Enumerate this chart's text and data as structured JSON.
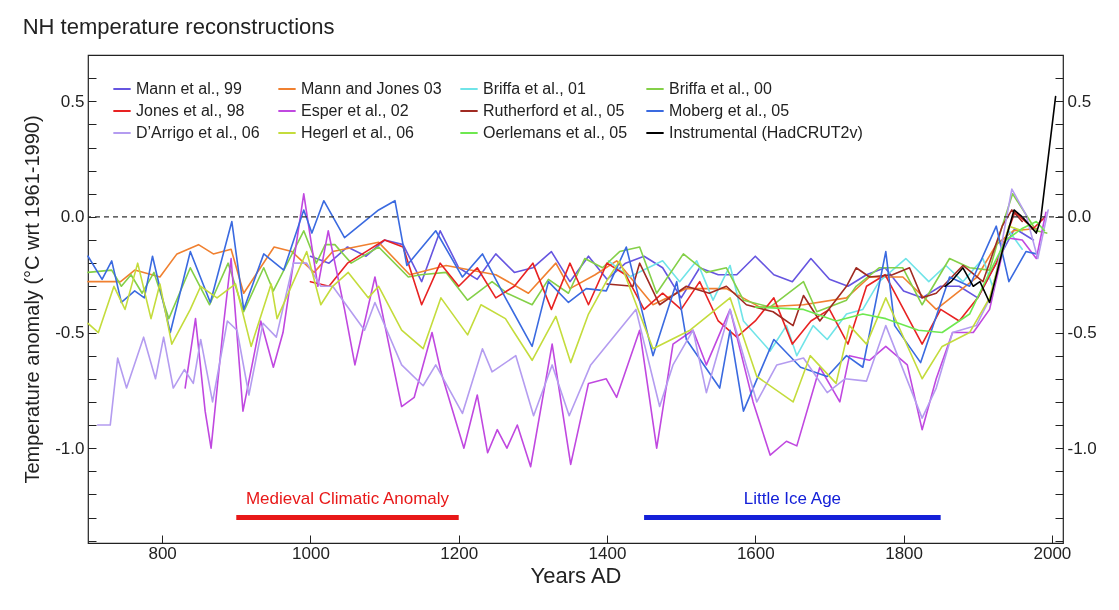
{
  "chart_data": {
    "type": "line",
    "title": "NH temperature reconstructions",
    "xlabel": "Years AD",
    "ylabel": "Temperature anomaly  (°C wrt 1961-1990)",
    "xlim": [
      700,
      2015
    ],
    "xticks": [
      800,
      1000,
      1200,
      1400,
      1600,
      1800,
      2000
    ],
    "ylim": [
      -1.41,
      0.7
    ],
    "yticks": [
      {
        "value": -1.4,
        "label": null
      },
      {
        "value": -1.3,
        "label": null
      },
      {
        "value": -1.2,
        "label": null
      },
      {
        "value": -1.1,
        "label": null
      },
      {
        "value": -1.0,
        "label": "-1.0"
      },
      {
        "value": -0.9,
        "label": null
      },
      {
        "value": -0.8,
        "label": null
      },
      {
        "value": -0.7,
        "label": null
      },
      {
        "value": -0.6,
        "label": null
      },
      {
        "value": -0.5,
        "label": "-0.5"
      },
      {
        "value": -0.4,
        "label": null
      },
      {
        "value": -0.3,
        "label": null
      },
      {
        "value": -0.2,
        "label": null
      },
      {
        "value": -0.1,
        "label": null
      },
      {
        "value": 0,
        "label": "0.0"
      },
      {
        "value": 0.1,
        "label": null
      },
      {
        "value": 0.2,
        "label": null
      },
      {
        "value": 0.3,
        "label": null
      },
      {
        "value": 0.4,
        "label": null
      },
      {
        "value": 0.5,
        "label": "0.5"
      },
      {
        "value": 0.6,
        "label": null
      }
    ],
    "y2lim": [
      -1.41,
      0.7
    ],
    "y2ticks": [
      {
        "value": -1.4,
        "label": null
      },
      {
        "value": -1.3,
        "label": null
      },
      {
        "value": -1.2,
        "label": null
      },
      {
        "value": -1.1,
        "label": null
      },
      {
        "value": -1.0,
        "label": "-1.0"
      },
      {
        "value": -0.9,
        "label": null
      },
      {
        "value": -0.8,
        "label": null
      },
      {
        "value": -0.7,
        "label": null
      },
      {
        "value": -0.6,
        "label": null
      },
      {
        "value": -0.5,
        "label": "-0.5"
      },
      {
        "value": -0.4,
        "label": null
      },
      {
        "value": -0.3,
        "label": null
      },
      {
        "value": -0.2,
        "label": null
      },
      {
        "value": -0.1,
        "label": null
      },
      {
        "value": 0,
        "label": "0.0"
      },
      {
        "value": 0.1,
        "label": null
      },
      {
        "value": 0.2,
        "label": null
      },
      {
        "value": 0.3,
        "label": null
      },
      {
        "value": 0.4,
        "label": null
      },
      {
        "value": 0.5,
        "label": "0.5"
      },
      {
        "value": 0.6,
        "label": null
      }
    ],
    "legend": "top left",
    "grid": false,
    "ref_lines": [
      {
        "axis": "y",
        "value": 0,
        "color": "#333333",
        "line_style": "dashed"
      }
    ],
    "annotations": [
      {
        "text": "Medieval Climatic Anomaly",
        "x": 1050,
        "y": -1.3
      },
      {
        "text": "Little Ice Age",
        "x": 1650,
        "y": -1.3
      }
    ],
    "series": [
      {
        "name": "Mann et al., 99",
        "color": "#6655e0",
        "x": [
          1000,
          1025,
          1050,
          1075,
          1100,
          1125,
          1150,
          1175,
          1200,
          1225,
          1250,
          1275,
          1300,
          1325,
          1350,
          1375,
          1400,
          1425,
          1450,
          1475,
          1500,
          1525,
          1550,
          1575,
          1600,
          1625,
          1650,
          1675,
          1700,
          1725,
          1750,
          1775,
          1800,
          1825,
          1850,
          1875,
          1900,
          1925,
          1950,
          1975
        ],
        "values": [
          -0.17,
          -0.2,
          -0.13,
          -0.17,
          -0.1,
          -0.12,
          -0.28,
          -0.06,
          -0.22,
          -0.27,
          -0.16,
          -0.24,
          -0.22,
          -0.15,
          -0.28,
          -0.17,
          -0.27,
          -0.2,
          -0.17,
          -0.22,
          -0.35,
          -0.22,
          -0.25,
          -0.25,
          -0.17,
          -0.25,
          -0.28,
          -0.18,
          -0.27,
          -0.3,
          -0.25,
          -0.22,
          -0.32,
          -0.35,
          -0.3,
          -0.3,
          -0.35,
          -0.2,
          -0.05,
          -0.1
        ]
      },
      {
        "name": "Mann and Jones 03",
        "color": "#f08030",
        "x": [
          700,
          744,
          763,
          797,
          820,
          849,
          869,
          893,
          910,
          951,
          975,
          1005,
          1030,
          1092,
          1134,
          1183,
          1250,
          1294,
          1331,
          1350,
          1384,
          1413,
          1462,
          1507,
          1561,
          1606,
          1665,
          1723,
          1754,
          1799,
          1844,
          1899,
          1925,
          1948,
          1980
        ],
        "values": [
          -0.28,
          -0.28,
          -0.23,
          -0.26,
          -0.16,
          -0.12,
          -0.16,
          -0.14,
          -0.33,
          -0.13,
          -0.15,
          -0.24,
          -0.15,
          -0.11,
          -0.25,
          -0.21,
          -0.25,
          -0.33,
          -0.2,
          -0.31,
          -0.25,
          -0.19,
          -0.38,
          -0.31,
          -0.31,
          -0.39,
          -0.38,
          -0.35,
          -0.26,
          -0.26,
          -0.4,
          -0.26,
          -0.12,
          -0.06,
          -0.05
        ]
      },
      {
        "name": "Briffa et al., 01",
        "color": "#70e4e8",
        "x": [
          1402,
          1430,
          1475,
          1498,
          1521,
          1543,
          1566,
          1584,
          1620,
          1642,
          1656,
          1678,
          1697,
          1723,
          1745,
          1767,
          1803,
          1834,
          1857,
          1880,
          1907,
          1920,
          1942,
          1960
        ],
        "values": [
          -0.19,
          -0.26,
          -0.19,
          -0.28,
          -0.19,
          -0.36,
          -0.21,
          -0.45,
          -0.58,
          -0.47,
          -0.6,
          -0.47,
          -0.53,
          -0.42,
          -0.4,
          -0.28,
          -0.18,
          -0.28,
          -0.21,
          -0.28,
          -0.18,
          -0.3,
          -0.06,
          -0.14
        ]
      },
      {
        "name": "Briffa et al., 00",
        "color": "#84d048",
        "x": [
          700,
          732,
          745,
          758,
          773,
          789,
          809,
          838,
          864,
          889,
          910,
          937,
          950,
          991,
          1008,
          1020,
          1033,
          1055,
          1092,
          1132,
          1149,
          1183,
          1212,
          1245,
          1265,
          1299,
          1321,
          1348,
          1370,
          1394,
          1417,
          1444,
          1467,
          1503,
          1534,
          1561,
          1584,
          1620,
          1665,
          1683,
          1723,
          1736,
          1767,
          1799,
          1825,
          1862,
          1889,
          1916,
          1933,
          1947,
          1979,
          1993
        ],
        "values": [
          -0.24,
          -0.23,
          -0.3,
          -0.25,
          -0.33,
          -0.24,
          -0.44,
          -0.22,
          -0.38,
          -0.2,
          -0.41,
          -0.22,
          -0.32,
          -0.06,
          -0.2,
          -0.12,
          -0.12,
          -0.2,
          -0.13,
          -0.26,
          -0.25,
          -0.24,
          -0.36,
          -0.28,
          -0.33,
          -0.38,
          -0.27,
          -0.33,
          -0.18,
          -0.22,
          -0.15,
          -0.13,
          -0.33,
          -0.16,
          -0.24,
          -0.22,
          -0.36,
          -0.39,
          -0.28,
          -0.41,
          -0.36,
          -0.3,
          -0.22,
          -0.22,
          -0.38,
          -0.18,
          -0.22,
          -0.23,
          -0.04,
          0.1,
          -0.06,
          -0.07
        ]
      },
      {
        "name": "Jones et al., 98",
        "color": "#e82222",
        "x": [
          1000,
          1025,
          1050,
          1075,
          1100,
          1125,
          1150,
          1175,
          1200,
          1225,
          1250,
          1275,
          1300,
          1325,
          1350,
          1375,
          1400,
          1425,
          1450,
          1475,
          1500,
          1525,
          1550,
          1575,
          1600,
          1625,
          1650,
          1675,
          1700,
          1725,
          1750,
          1775,
          1800,
          1825,
          1850,
          1875,
          1900,
          1925,
          1950,
          1975,
          1991
        ],
        "values": [
          -0.28,
          -0.3,
          -0.2,
          -0.15,
          -0.1,
          -0.13,
          -0.38,
          -0.2,
          -0.3,
          -0.22,
          -0.35,
          -0.3,
          -0.2,
          -0.4,
          -0.2,
          -0.38,
          -0.2,
          -0.25,
          -0.4,
          -0.33,
          -0.4,
          -0.28,
          -0.45,
          -0.52,
          -0.45,
          -0.35,
          -0.55,
          -0.45,
          -0.4,
          -0.55,
          -0.3,
          -0.25,
          -0.4,
          -0.55,
          -0.4,
          -0.45,
          -0.35,
          -0.2,
          0.02,
          -0.05,
          0.0
        ]
      },
      {
        "name": "Esper et al., 02",
        "color": "#c048e0",
        "x": [
          831,
          845,
          858,
          866,
          883,
          893,
          909,
          933,
          950,
          963,
          991,
          1010,
          1024,
          1046,
          1060,
          1087,
          1123,
          1140,
          1164,
          1176,
          1207,
          1225,
          1239,
          1252,
          1265,
          1279,
          1297,
          1326,
          1351,
          1375,
          1399,
          1413,
          1444,
          1467,
          1489,
          1516,
          1534,
          1566,
          1597,
          1620,
          1642,
          1656,
          1687,
          1714,
          1727,
          1754,
          1776,
          1805,
          1825,
          1844,
          1866,
          1894,
          1916,
          1938,
          1960,
          1979,
          1992
        ],
        "values": [
          -0.74,
          -0.44,
          -0.84,
          -1.0,
          -0.46,
          -0.18,
          -0.84,
          -0.45,
          -0.65,
          -0.5,
          0.1,
          -0.3,
          -0.06,
          -0.4,
          -0.64,
          -0.26,
          -0.82,
          -0.78,
          -0.5,
          -0.67,
          -1.0,
          -0.77,
          -1.02,
          -0.92,
          -1.0,
          -0.9,
          -1.08,
          -0.55,
          -1.07,
          -0.72,
          -0.7,
          -0.78,
          -0.49,
          -1.0,
          -0.55,
          -0.49,
          -0.64,
          -0.4,
          -0.8,
          -1.03,
          -0.97,
          -0.99,
          -0.65,
          -0.8,
          -0.6,
          -0.62,
          -0.56,
          -0.64,
          -0.92,
          -0.7,
          -0.5,
          -0.5,
          -0.4,
          -0.09,
          -0.1,
          -0.18,
          0.02
        ]
      },
      {
        "name": "Rutherford et al., 05",
        "color": "#a02a22",
        "x": [
          1400,
          1435,
          1444,
          1471,
          1507,
          1538,
          1561,
          1588,
          1624,
          1651,
          1665,
          1687,
          1723,
          1736,
          1754,
          1785,
          1808,
          1825,
          1844,
          1880,
          1907,
          1933,
          1946,
          1960
        ],
        "values": [
          -0.29,
          -0.3,
          -0.2,
          -0.38,
          -0.3,
          -0.33,
          -0.3,
          -0.38,
          -0.41,
          -0.47,
          -0.34,
          -0.45,
          -0.3,
          -0.22,
          -0.26,
          -0.25,
          -0.22,
          -0.35,
          -0.33,
          -0.21,
          -0.28,
          -0.04,
          0.03,
          -0.02
        ]
      },
      {
        "name": "Moberg et al., 05",
        "color": "#3a6ae0",
        "x": [
          700,
          719,
          732,
          745,
          763,
          776,
          787,
          811,
          838,
          865,
          894,
          910,
          937,
          964,
          991,
          1002,
          1018,
          1046,
          1092,
          1114,
          1130,
          1169,
          1205,
          1232,
          1263,
          1299,
          1321,
          1348,
          1372,
          1399,
          1426,
          1462,
          1494,
          1507,
          1552,
          1566,
          1584,
          1625,
          1661,
          1697,
          1723,
          1745,
          1776,
          1788,
          1823,
          1862,
          1889,
          1925,
          1942,
          1965,
          1979
        ],
        "values": [
          -0.17,
          -0.27,
          -0.19,
          -0.37,
          -0.32,
          -0.35,
          -0.17,
          -0.5,
          -0.15,
          -0.37,
          -0.02,
          -0.4,
          -0.16,
          -0.23,
          0.03,
          -0.07,
          0.07,
          -0.09,
          0.03,
          0.07,
          -0.21,
          -0.06,
          -0.26,
          -0.16,
          -0.35,
          -0.56,
          -0.28,
          -0.37,
          -0.31,
          -0.32,
          -0.13,
          -0.6,
          -0.28,
          -0.53,
          -0.74,
          -0.49,
          -0.84,
          -0.53,
          -0.65,
          -0.69,
          -0.6,
          -0.65,
          -0.15,
          -0.47,
          -0.63,
          -0.26,
          -0.3,
          -0.04,
          -0.28,
          -0.15,
          -0.16
        ]
      },
      {
        "name": "D’Arrigo et al., 06",
        "color": "#b49cf0",
        "x": [
          713,
          730,
          740,
          752,
          775,
          791,
          802,
          815,
          830,
          842,
          852,
          868,
          888,
          901,
          917,
          936,
          954,
          977,
          995,
          1014,
          1030,
          1073,
          1087,
          1123,
          1152,
          1169,
          1205,
          1232,
          1245,
          1277,
          1301,
          1326,
          1349,
          1378,
          1439,
          1471,
          1489,
          1516,
          1534,
          1566,
          1602,
          1629,
          1665,
          1697,
          1721,
          1750,
          1776,
          1825,
          1844,
          1866,
          1898,
          1920,
          1946,
          1965,
          1981,
          1995
        ],
        "values": [
          -0.9,
          -0.9,
          -0.61,
          -0.74,
          -0.52,
          -0.7,
          -0.52,
          -0.74,
          -0.66,
          -0.72,
          -0.53,
          -0.8,
          -0.45,
          -0.49,
          -0.77,
          -0.46,
          -0.52,
          -0.2,
          -0.2,
          -0.3,
          -0.3,
          -0.49,
          -0.37,
          -0.64,
          -0.73,
          -0.64,
          -0.85,
          -0.57,
          -0.67,
          -0.6,
          -0.86,
          -0.64,
          -0.86,
          -0.64,
          -0.4,
          -0.82,
          -0.64,
          -0.49,
          -0.76,
          -0.4,
          -0.8,
          -0.64,
          -0.61,
          -0.76,
          -0.7,
          -0.71,
          -0.47,
          -0.87,
          -0.74,
          -0.5,
          -0.47,
          -0.33,
          0.12,
          0.01,
          -0.18,
          0.03
        ]
      },
      {
        "name": "Hegerl et al., 06",
        "color": "#c4dc3c",
        "x": [
          700,
          714,
          735,
          750,
          767,
          785,
          797,
          813,
          838,
          852,
          874,
          899,
          920,
          947,
          955,
          995,
          1014,
          1030,
          1051,
          1078,
          1092,
          1123,
          1152,
          1176,
          1212,
          1230,
          1263,
          1299,
          1331,
          1351,
          1375,
          1399,
          1417,
          1462,
          1512,
          1566,
          1602,
          1651,
          1674,
          1709,
          1727,
          1750,
          1776,
          1825,
          1852,
          1889,
          1916,
          1942,
          1960
        ],
        "values": [
          -0.46,
          -0.5,
          -0.3,
          -0.4,
          -0.2,
          -0.44,
          -0.29,
          -0.55,
          -0.4,
          -0.3,
          -0.35,
          -0.29,
          -0.56,
          -0.29,
          -0.44,
          -0.15,
          -0.38,
          -0.3,
          -0.24,
          -0.35,
          -0.3,
          -0.49,
          -0.57,
          -0.35,
          -0.51,
          -0.38,
          -0.44,
          -0.62,
          -0.43,
          -0.63,
          -0.42,
          -0.28,
          -0.19,
          -0.57,
          -0.49,
          -0.35,
          -0.69,
          -0.8,
          -0.6,
          -0.72,
          -0.47,
          -0.55,
          -0.35,
          -0.7,
          -0.56,
          -0.5,
          -0.35,
          -0.04,
          -0.06
        ]
      },
      {
        "name": "Oerlemans et al., 05",
        "color": "#6ee850",
        "x": [
          1600,
          1665,
          1709,
          1745,
          1776,
          1820,
          1852,
          1889,
          1916,
          1938,
          1960,
          1979,
          1990
        ],
        "values": [
          -0.39,
          -0.4,
          -0.45,
          -0.42,
          -0.44,
          -0.49,
          -0.5,
          -0.42,
          -0.24,
          -0.1,
          -0.05,
          -0.02,
          -0.06
        ]
      },
      {
        "name": "Instrumental (HadCRUT2v)",
        "color": "#000000",
        "x": [
          1856,
          1864,
          1880,
          1894,
          1903,
          1916,
          1933,
          1949,
          1960,
          1979,
          1985,
          2005
        ],
        "values": [
          -0.3,
          -0.28,
          -0.22,
          -0.3,
          -0.28,
          -0.37,
          -0.15,
          0.03,
          0.0,
          -0.07,
          -0.01,
          0.52
        ]
      },
      {
        "color": "#e81818",
        "x": [
          900,
          1200
        ],
        "values": [
          -1.3,
          -1.3
        ]
      },
      {
        "color": "#1420d8",
        "x": [
          1450,
          1850
        ],
        "values": [
          -1.3,
          -1.3
        ]
      }
    ]
  }
}
